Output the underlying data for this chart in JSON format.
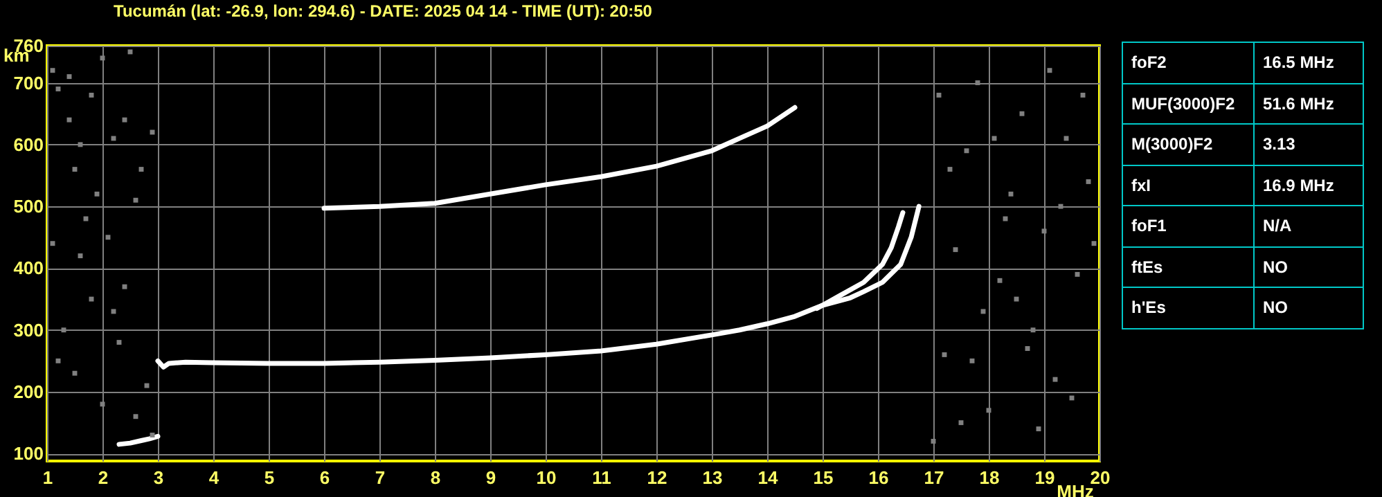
{
  "chart_data": [
    {
      "type": "line",
      "title": "Tucumán (lat: -26.9, lon: 294.6) - DATE: 2025 04 14 - TIME (UT): 20:50",
      "xlabel": "MHz",
      "ylabel": "km",
      "xlim": [
        1,
        20
      ],
      "ylim": [
        88,
        760
      ],
      "xticks": [
        1,
        2,
        3,
        4,
        5,
        6,
        7,
        8,
        9,
        10,
        11,
        12,
        13,
        14,
        15,
        16,
        17,
        18,
        19,
        20
      ],
      "yticks": [
        100,
        200,
        300,
        400,
        500,
        600,
        700,
        760
      ],
      "grid": true,
      "series": [
        {
          "color": "#ffffff",
          "x": [
            3.0,
            3.1,
            3.2,
            3.5,
            4,
            5,
            6,
            7,
            8,
            9,
            10,
            11,
            12,
            13,
            13.5,
            14,
            14.5,
            15,
            15.5,
            15.74,
            16.08,
            16.41,
            16.6,
            16.74
          ],
          "values": [
            250,
            240,
            246,
            248,
            247,
            246,
            246,
            248,
            251,
            255,
            260,
            266,
            277,
            292,
            300,
            310,
            322,
            340,
            352,
            362,
            377,
            406,
            450,
            500
          ]
        },
        {
          "color": "#ffffff",
          "x": [
            14.9,
            15.3,
            15.74,
            16.08,
            16.24,
            16.37,
            16.45
          ],
          "values": [
            335,
            355,
            377,
            406,
            433,
            467,
            490
          ]
        },
        {
          "color": "#ffffff",
          "x": [
            6,
            7,
            8,
            9,
            10,
            11,
            12,
            13,
            13.5,
            14,
            14.5
          ],
          "values": [
            497,
            500,
            505,
            520,
            535,
            548,
            565,
            590,
            610,
            630,
            660
          ]
        },
        {
          "color": "#ffffff",
          "x": [
            2.3,
            2.5,
            2.7,
            2.85,
            3.0
          ],
          "values": [
            115,
            117,
            121,
            124,
            128
          ]
        },
        {
          "type": "scatter",
          "color": "#808080",
          "marker": "square",
          "x": [
            1.1,
            1.2,
            1.4,
            1.5,
            1.6,
            1.8,
            1.9,
            2.0,
            2.1,
            2.2,
            2.3,
            2.4,
            2.5,
            2.6,
            2.8,
            2.9,
            1.3,
            1.7,
            2.2,
            1.1,
            1.5,
            2.7,
            2.0,
            1.6,
            2.4,
            1.2,
            2.9,
            1.8,
            2.6,
            1.4,
            17.0,
            17.2,
            17.4,
            17.6,
            17.8,
            18.0,
            18.2,
            18.4,
            18.6,
            18.8,
            19.0,
            19.2,
            19.4,
            19.6,
            19.8,
            17.1,
            17.5,
            17.9,
            18.3,
            18.7,
            19.1,
            19.5,
            19.9,
            17.3,
            17.7,
            18.1,
            18.5,
            18.9,
            19.3,
            19.7
          ],
          "values": [
            720,
            690,
            640,
            560,
            600,
            680,
            520,
            740,
            450,
            330,
            280,
            370,
            750,
            160,
            210,
            130,
            300,
            480,
            610,
            440,
            230,
            560,
            180,
            420,
            640,
            250,
            620,
            350,
            510,
            710,
            120,
            260,
            430,
            590,
            700,
            170,
            380,
            520,
            650,
            300,
            460,
            220,
            610,
            390,
            540,
            680,
            150,
            330,
            480,
            270,
            720,
            190,
            440,
            560,
            250,
            610,
            350,
            140,
            500,
            680
          ]
        }
      ]
    },
    {
      "type": "other",
      "annotations": [
        "foF2",
        "16.5 MHz",
        "MUF(3000)F2",
        "51.6 MHz",
        "M(3000)F2",
        "3.13",
        "fxI",
        "16.9 MHz",
        "foF1",
        "N/A",
        "ftEs",
        "NO",
        "h'Es",
        "NO"
      ]
    }
  ]
}
